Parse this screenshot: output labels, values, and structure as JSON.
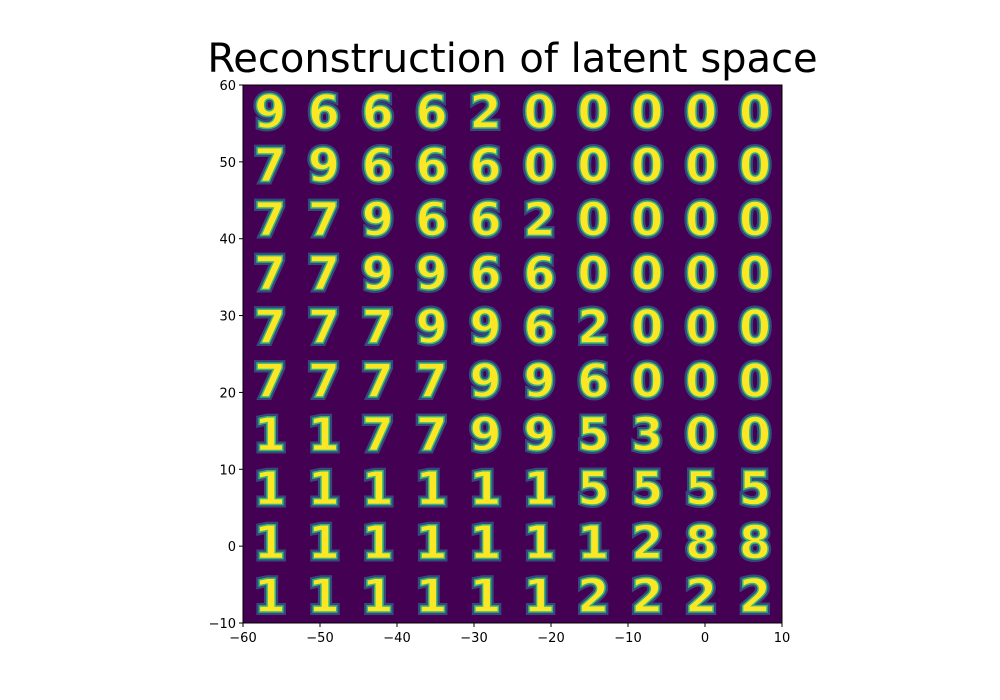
{
  "chart_data": {
    "type": "heatmap",
    "title": "Reconstruction of latent space",
    "xlabel": "",
    "ylabel": "",
    "xlim": [
      -60,
      10
    ],
    "ylim": [
      -10,
      60
    ],
    "x_ticks": [
      "−60",
      "−50",
      "−40",
      "−30",
      "−20",
      "−10",
      "0",
      "10"
    ],
    "y_ticks": [
      "−10",
      "0",
      "10",
      "20",
      "30",
      "40",
      "50",
      "60"
    ],
    "x_tick_values": [
      -60,
      -50,
      -40,
      -30,
      -20,
      -10,
      0,
      10
    ],
    "y_tick_values": [
      -10,
      0,
      10,
      20,
      30,
      40,
      50,
      60
    ],
    "colors": {
      "background": "#440154",
      "low": "#31688e",
      "mid": "#35b779",
      "high": "#fde725"
    },
    "grid": false,
    "grid_cols": 10,
    "grid_rows": 10,
    "digit_grid": [
      [
        "9",
        "6",
        "6",
        "6",
        "2",
        "0",
        "0",
        "0",
        "0",
        "0"
      ],
      [
        "7",
        "9",
        "6",
        "6",
        "6",
        "0",
        "0",
        "0",
        "0",
        "0"
      ],
      [
        "7",
        "7",
        "9",
        "6",
        "6",
        "2",
        "0",
        "0",
        "0",
        "0"
      ],
      [
        "7",
        "7",
        "9",
        "9",
        "6",
        "6",
        "0",
        "0",
        "0",
        "0"
      ],
      [
        "7",
        "7",
        "7",
        "9",
        "9",
        "6",
        "2",
        "0",
        "0",
        "0"
      ],
      [
        "7",
        "7",
        "7",
        "7",
        "9",
        "9",
        "6",
        "0",
        "0",
        "0"
      ],
      [
        "1",
        "1",
        "7",
        "7",
        "9",
        "9",
        "5",
        "3",
        "0",
        "0"
      ],
      [
        "1",
        "1",
        "1",
        "1",
        "1",
        "1",
        "5",
        "5",
        "5",
        "5"
      ],
      [
        "1",
        "1",
        "1",
        "1",
        "1",
        "1",
        "1",
        "2",
        "8",
        "8"
      ],
      [
        "1",
        "1",
        "1",
        "1",
        "1",
        "1",
        "2",
        "2",
        "2",
        "2"
      ]
    ]
  }
}
